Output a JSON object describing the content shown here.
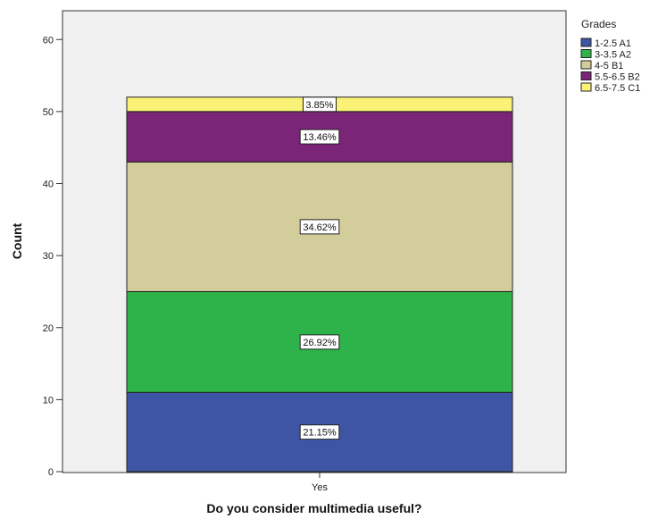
{
  "chart_data": {
    "type": "bar",
    "stacked": true,
    "categories": [
      "Yes"
    ],
    "series": [
      {
        "name": "1-2.5  A1",
        "values": [
          11
        ],
        "label": "21.15%",
        "color": "#3d55a4"
      },
      {
        "name": "3-3.5 A2",
        "values": [
          14
        ],
        "label": "26.92%",
        "color": "#2db34a"
      },
      {
        "name": "4-5 B1",
        "values": [
          18
        ],
        "label": "34.62%",
        "color": "#d3cd9b"
      },
      {
        "name": "5.5-6.5 B2",
        "values": [
          7
        ],
        "label": "13.46%",
        "color": "#7a2577"
      },
      {
        "name": "6.5-7.5 C1",
        "values": [
          2
        ],
        "label": "3.85%",
        "color": "#faf277"
      }
    ],
    "xlabel": "Do you consider multimedia useful?",
    "ylabel": "Count",
    "ylim": [
      0,
      64
    ],
    "yticks": [
      0,
      10,
      20,
      30,
      40,
      50,
      60
    ],
    "legend_title": "Grades",
    "legend_position": "top-right",
    "plot_background": "#f0f0f0",
    "grid": false
  }
}
